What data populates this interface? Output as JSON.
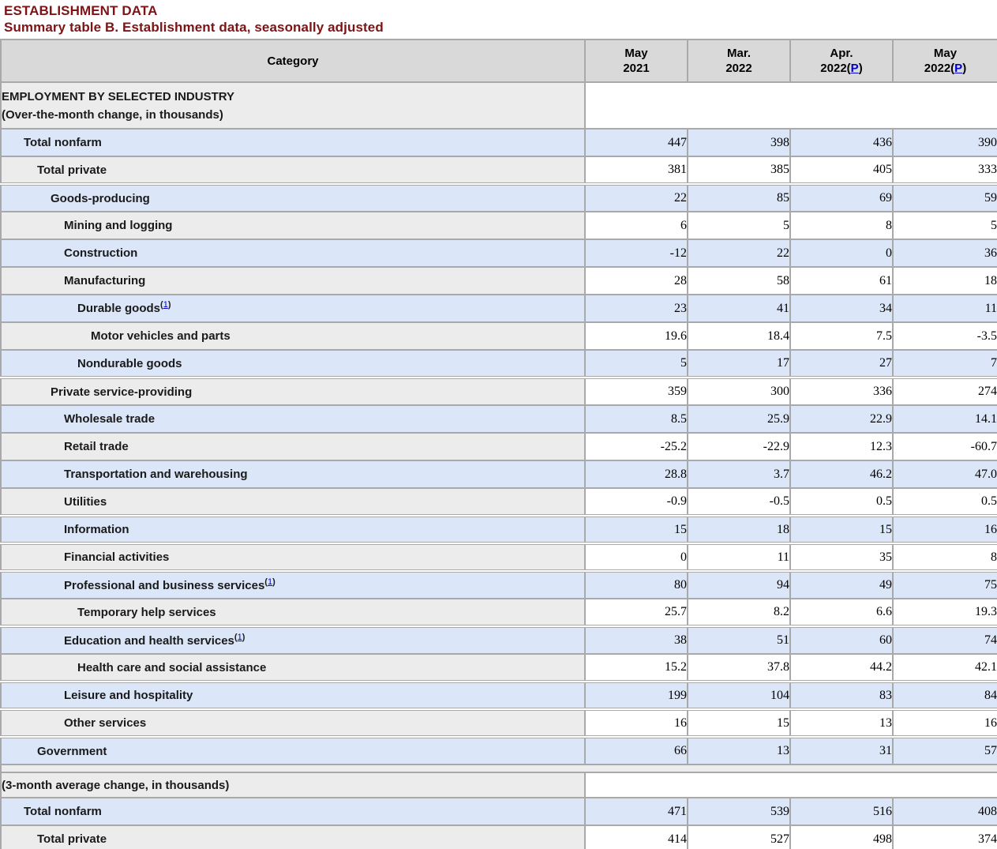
{
  "page": {
    "title": "ESTABLISHMENT DATA",
    "subtitle": "Summary table B. Establishment data, seasonally adjusted"
  },
  "colors": {
    "title_text": "#7d1315",
    "header_bg": "#d9d9d9",
    "section_bg": "#ececec",
    "row_blue_bg": "#dbe6f8",
    "row_gray_bg": "#ececec",
    "border": "#a9a9a9",
    "link_blue": "#0000cc"
  },
  "table": {
    "category_header": "Category",
    "preliminary_link_label": "P",
    "columns": [
      {
        "month": "May",
        "year": "2021",
        "preliminary": false
      },
      {
        "month": "Mar.",
        "year": "2022",
        "preliminary": false
      },
      {
        "month": "Apr.",
        "year": "2022",
        "preliminary": true
      },
      {
        "month": "May",
        "year": "2022",
        "preliminary": true
      }
    ],
    "sections": [
      {
        "header_lines": [
          "EMPLOYMENT BY SELECTED INDUSTRY",
          "(Over-the-month change, in thousands)"
        ],
        "rows": [
          {
            "label": "Total nonfarm",
            "indent": 1,
            "footnote": null,
            "group_start": false,
            "values": [
              "447",
              "398",
              "436",
              "390"
            ]
          },
          {
            "label": "Total private",
            "indent": 2,
            "footnote": null,
            "group_start": false,
            "values": [
              "381",
              "385",
              "405",
              "333"
            ]
          },
          {
            "label": "Goods-producing",
            "indent": 3,
            "footnote": null,
            "group_start": true,
            "values": [
              "22",
              "85",
              "69",
              "59"
            ]
          },
          {
            "label": "Mining and logging",
            "indent": 4,
            "footnote": null,
            "group_start": false,
            "values": [
              "6",
              "5",
              "8",
              "5"
            ]
          },
          {
            "label": "Construction",
            "indent": 4,
            "footnote": null,
            "group_start": false,
            "values": [
              "-12",
              "22",
              "0",
              "36"
            ]
          },
          {
            "label": "Manufacturing",
            "indent": 4,
            "footnote": null,
            "group_start": false,
            "values": [
              "28",
              "58",
              "61",
              "18"
            ]
          },
          {
            "label": "Durable goods",
            "indent": 5,
            "footnote": "1",
            "group_start": false,
            "values": [
              "23",
              "41",
              "34",
              "11"
            ]
          },
          {
            "label": "Motor vehicles and parts",
            "indent": 6,
            "footnote": null,
            "group_start": false,
            "values": [
              "19.6",
              "18.4",
              "7.5",
              "-3.5"
            ]
          },
          {
            "label": "Nondurable goods",
            "indent": 5,
            "footnote": null,
            "group_start": false,
            "values": [
              "5",
              "17",
              "27",
              "7"
            ]
          },
          {
            "label": "Private service-providing",
            "indent": 3,
            "footnote": null,
            "group_start": true,
            "values": [
              "359",
              "300",
              "336",
              "274"
            ]
          },
          {
            "label": "Wholesale trade",
            "indent": 4,
            "footnote": null,
            "group_start": false,
            "values": [
              "8.5",
              "25.9",
              "22.9",
              "14.1"
            ]
          },
          {
            "label": "Retail trade",
            "indent": 4,
            "footnote": null,
            "group_start": false,
            "values": [
              "-25.2",
              "-22.9",
              "12.3",
              "-60.7"
            ]
          },
          {
            "label": "Transportation and warehousing",
            "indent": 4,
            "footnote": null,
            "group_start": false,
            "values": [
              "28.8",
              "3.7",
              "46.2",
              "47.0"
            ]
          },
          {
            "label": "Utilities",
            "indent": 4,
            "footnote": null,
            "group_start": false,
            "values": [
              "-0.9",
              "-0.5",
              "0.5",
              "0.5"
            ]
          },
          {
            "label": "Information",
            "indent": 4,
            "footnote": null,
            "group_start": true,
            "values": [
              "15",
              "18",
              "15",
              "16"
            ]
          },
          {
            "label": "Financial activities",
            "indent": 4,
            "footnote": null,
            "group_start": true,
            "values": [
              "0",
              "11",
              "35",
              "8"
            ]
          },
          {
            "label": "Professional and business services",
            "indent": 4,
            "footnote": "1",
            "group_start": true,
            "values": [
              "80",
              "94",
              "49",
              "75"
            ]
          },
          {
            "label": "Temporary help services",
            "indent": 5,
            "footnote": null,
            "group_start": false,
            "values": [
              "25.7",
              "8.2",
              "6.6",
              "19.3"
            ]
          },
          {
            "label": "Education and health services",
            "indent": 4,
            "footnote": "1",
            "group_start": true,
            "values": [
              "38",
              "51",
              "60",
              "74"
            ]
          },
          {
            "label": "Health care and social assistance",
            "indent": 5,
            "footnote": null,
            "group_start": false,
            "values": [
              "15.2",
              "37.8",
              "44.2",
              "42.1"
            ]
          },
          {
            "label": "Leisure and hospitality",
            "indent": 4,
            "footnote": null,
            "group_start": true,
            "values": [
              "199",
              "104",
              "83",
              "84"
            ]
          },
          {
            "label": "Other services",
            "indent": 4,
            "footnote": null,
            "group_start": true,
            "values": [
              "16",
              "15",
              "13",
              "16"
            ]
          },
          {
            "label": "Government",
            "indent": 2,
            "footnote": null,
            "group_start": true,
            "values": [
              "66",
              "13",
              "31",
              "57"
            ]
          }
        ]
      },
      {
        "header_lines": [
          "(3-month average change, in thousands)"
        ],
        "rows": [
          {
            "label": "Total nonfarm",
            "indent": 1,
            "footnote": null,
            "group_start": false,
            "values": [
              "471",
              "539",
              "516",
              "408"
            ]
          },
          {
            "label": "Total private",
            "indent": 2,
            "footnote": null,
            "group_start": false,
            "values": [
              "414",
              "527",
              "498",
              "374"
            ]
          }
        ]
      }
    ]
  }
}
